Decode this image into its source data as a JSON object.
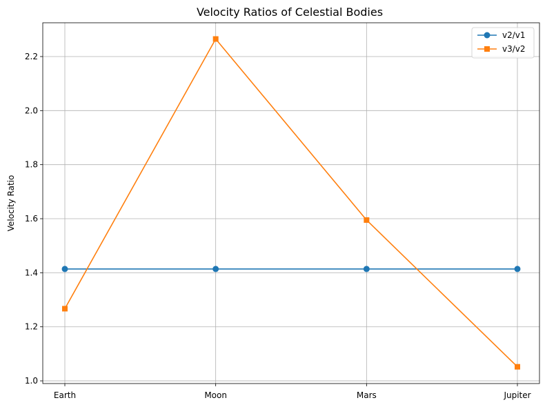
{
  "chart_data": {
    "type": "line",
    "title": "Velocity Ratios of Celestial Bodies",
    "xlabel": "",
    "ylabel": "Velocity Ratio",
    "categories": [
      "Earth",
      "Moon",
      "Mars",
      "Jupiter"
    ],
    "series": [
      {
        "name": "v2/v1",
        "values": [
          1.414,
          1.414,
          1.414,
          1.414
        ],
        "color": "#1f77b4",
        "marker": "circle"
      },
      {
        "name": "v3/v2",
        "values": [
          1.267,
          2.265,
          1.595,
          1.052
        ],
        "color": "#ff7f0e",
        "marker": "square"
      }
    ],
    "ylim": [
      0.99,
      2.325
    ],
    "yticks": [
      "1.0",
      "1.2",
      "1.4",
      "1.6",
      "1.8",
      "2.0",
      "2.2"
    ],
    "grid": true,
    "legend_position": "top-right"
  }
}
